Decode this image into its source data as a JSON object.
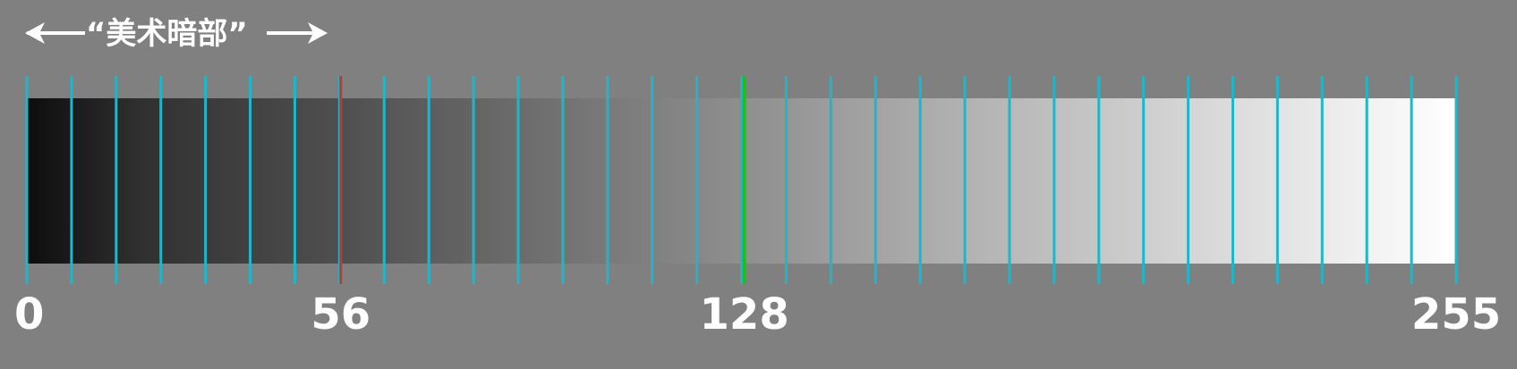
{
  "caption": "“美术暗部”",
  "scale": {
    "min": 0,
    "max": 255,
    "gradient_start_color": "#0d0d0d",
    "gradient_end_color": "#ffffff",
    "divisions": 32
  },
  "markers": [
    {
      "value": 56,
      "color": "#c0392b"
    },
    {
      "value": 128,
      "color": "#22bb22"
    }
  ],
  "tick_line_color": "#1fb6c9",
  "labels": [
    {
      "value": 0,
      "text": "0"
    },
    {
      "value": 56,
      "text": "56"
    },
    {
      "value": 128,
      "text": "128"
    },
    {
      "value": 255,
      "text": "255"
    }
  ],
  "arrow_color": "#ffffff"
}
